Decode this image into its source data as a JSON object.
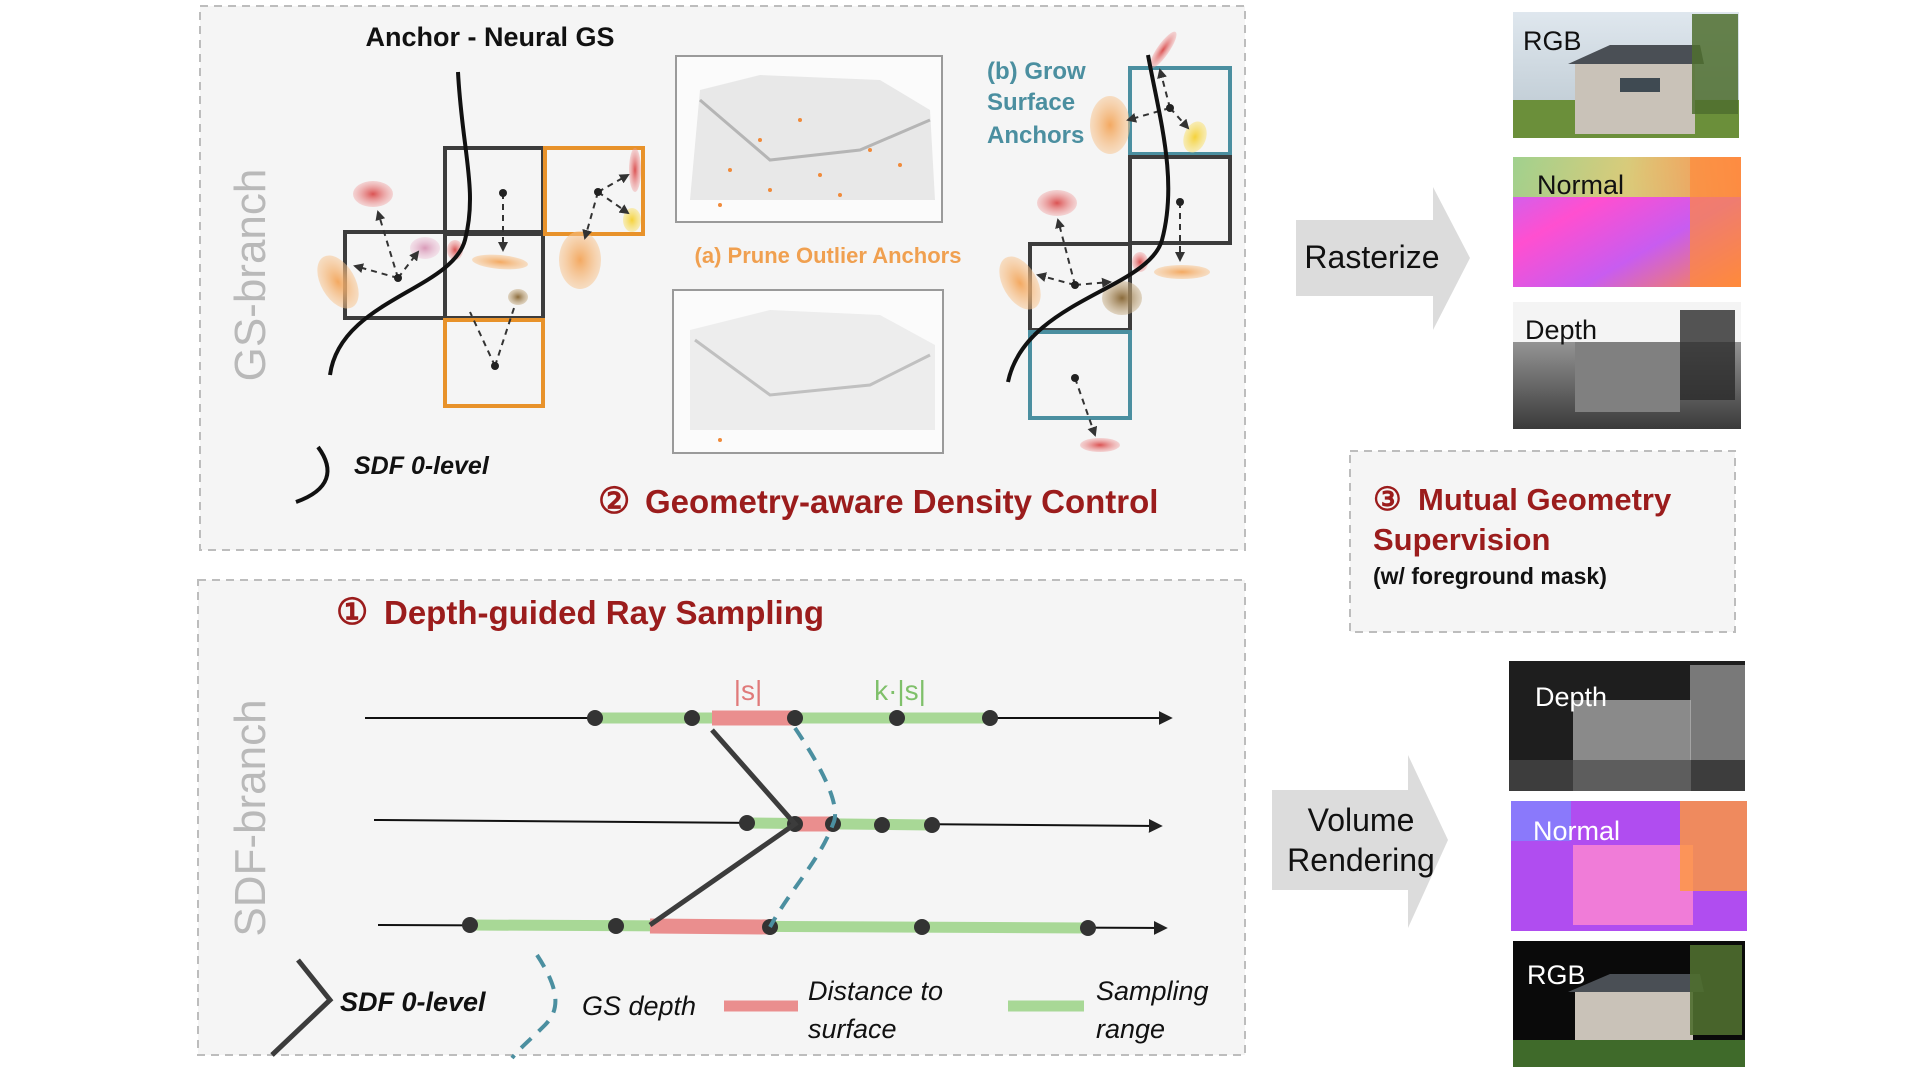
{
  "gs_panel": {
    "branch_label": "GS-branch",
    "anchor_title": "Anchor - Neural GS",
    "prune_label": "(a) Prune Outlier Anchors",
    "grow_label": [
      "(b) Grow",
      "Surface",
      "Anchors"
    ],
    "legend_sdf": "SDF 0-level",
    "section_number": "②",
    "section_title": "Geometry-aware Density Control"
  },
  "sdf_panel": {
    "branch_label": "SDF-branch",
    "section_number": "①",
    "section_title": "Depth-guided Ray Sampling",
    "s_label": "|s|",
    "ks_label": "k·|s|",
    "legend_sdf": "SDF 0-level",
    "legend_gs_depth": "GS depth",
    "legend_distance": [
      "Distance to",
      "surface"
    ],
    "legend_sampling": [
      "Sampling",
      "range"
    ]
  },
  "rasterize": {
    "label": "Rasterize",
    "outputs": [
      "RGB",
      "Normal",
      "Depth"
    ]
  },
  "volume_rendering": {
    "label": [
      "Volume",
      "Rendering"
    ],
    "outputs": [
      "Depth",
      "Normal",
      "RGB"
    ]
  },
  "mutual": {
    "number": "③",
    "title_line1": "Mutual Geometry",
    "title_line2": "Supervision",
    "subtitle": "(w/ foreground mask)"
  },
  "colors": {
    "dark_red": "#9b1c1c",
    "orange": "#e8922a",
    "teal": "#4b8fa0",
    "green": "#9dd18a",
    "pink": "#ea8e8e",
    "gray_label": "#b9b9b9"
  }
}
